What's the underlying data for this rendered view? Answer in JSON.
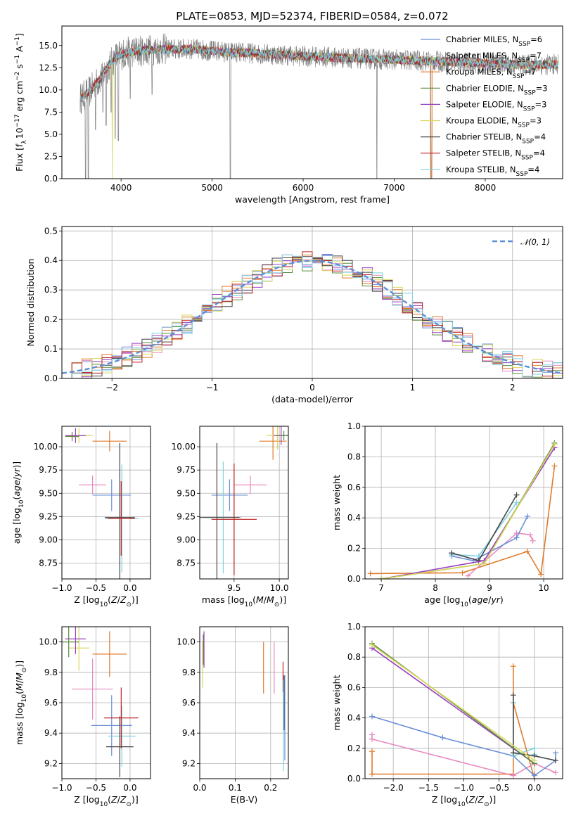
{
  "figure_title": "PLATE=0853, MJD=52374, FIBERID=0584, z=0.072",
  "series_styles": [
    {
      "name": "Chabrier MILES, N",
      "sub": "SSP",
      "suffix": "=6",
      "color": "#6a8fd8"
    },
    {
      "name": "Salpeter MILES, N",
      "sub": "SSP",
      "suffix": "=7",
      "color": "#e0e0e0"
    },
    {
      "name": "Kroupa MILES, N",
      "sub": "SSP",
      "suffix": "=7",
      "color": "#e07a2a"
    },
    {
      "name": "Chabrier ELODIE, N",
      "sub": "SSP",
      "suffix": "=3",
      "color": "#5b8a3c"
    },
    {
      "name": "Salpeter ELODIE, N",
      "sub": "SSP",
      "suffix": "=3",
      "color": "#9b3fc0"
    },
    {
      "name": "Kroupa ELODIE, N",
      "sub": "SSP",
      "suffix": "=3",
      "color": "#d8d85a"
    },
    {
      "name": "Chabrier STELIB, N",
      "sub": "SSP",
      "suffix": "=4",
      "color": "#444444"
    },
    {
      "name": "Salpeter STELIB, N",
      "sub": "SSP",
      "suffix": "=4",
      "color": "#c02020"
    },
    {
      "name": "Kroupa STELIB, N",
      "sub": "SSP",
      "suffix": "=4",
      "color": "#7fd3e0"
    }
  ],
  "chart_data": [
    {
      "id": "spectrum",
      "type": "line",
      "xlabel": "wavelength [Angstrom, rest frame]",
      "ylabel": "Flux [f",
      "xlim": [
        3350,
        8850
      ],
      "ylim": [
        0,
        17.2
      ],
      "xticks": [
        4000,
        5000,
        6000,
        7000,
        8000
      ],
      "yticks": [
        0.0,
        2.5,
        5.0,
        7.5,
        10.0,
        12.5,
        15.0
      ],
      "ytick_labels": [
        "0.0",
        "2.5",
        "5.0",
        "7.5",
        "10.0",
        "12.5",
        "15.0"
      ],
      "legend": "top-right",
      "data_color": "#808080",
      "approx_continuum": {
        "x": [
          3550,
          3650,
          3750,
          3850,
          3950,
          4100,
          4300,
          4500,
          4800,
          5100,
          5500,
          6000,
          6500,
          7000,
          7500,
          8000,
          8500,
          8800
        ],
        "y": [
          9.0,
          9.8,
          11.0,
          12.5,
          13.8,
          14.3,
          14.5,
          14.6,
          14.6,
          14.3,
          14.1,
          13.8,
          13.6,
          13.4,
          13.2,
          13.0,
          12.8,
          12.9
        ]
      }
    },
    {
      "id": "residuals",
      "type": "histogram",
      "xlabel": "(data-model)/error",
      "ylabel": "Normed distribution",
      "xlim": [
        -2.5,
        2.5
      ],
      "ylim": [
        0,
        0.515
      ],
      "xticks": [
        -2,
        -1,
        0,
        1,
        2
      ],
      "xtick_labels": [
        "−2",
        "−1",
        "0",
        "1",
        "2"
      ],
      "yticks": [
        0.0,
        0.1,
        0.2,
        0.3,
        0.4,
        0.5
      ],
      "ytick_labels": [
        "0.0",
        "0.1",
        "0.2",
        "0.3",
        "0.4",
        "0.5"
      ],
      "bin_width": 0.1,
      "grid": true,
      "legend": "top-right",
      "legend_label": "𝒩(0, 1)",
      "gaussian": {
        "mean": 0,
        "sigma": 1,
        "color": "#5b8fd8"
      }
    },
    {
      "id": "age-vs-Z",
      "type": "scatter",
      "xlabel": "Z [log",
      "ylabel": "age  [log",
      "xlim": [
        -1.0,
        0.3
      ],
      "ylim": [
        8.58,
        10.22
      ],
      "xticks": [
        -1.0,
        -0.5,
        0.0
      ],
      "xtick_labels": [
        "−1.0",
        "−0.5",
        "0.0"
      ],
      "yticks": [
        8.75,
        9.0,
        9.25,
        9.5,
        9.75,
        10.0
      ],
      "ytick_labels": [
        "8.75",
        "9.00",
        "9.25",
        "9.50",
        "9.75",
        "10.00"
      ],
      "grid": true,
      "points": [
        {
          "x": -0.55,
          "y": 9.59,
          "ex": 0.2,
          "ey": 0.1,
          "c": "#e889c0"
        },
        {
          "x": -0.27,
          "y": 9.48,
          "ex": 0.28,
          "ey": 0.17,
          "c": "#6a8fd8"
        },
        {
          "x": -0.12,
          "y": 9.23,
          "ex": 0.25,
          "ey": 0.58,
          "c": "#7fd3e0"
        },
        {
          "x": -0.15,
          "y": 9.24,
          "ex": 0.22,
          "ey": 0.8,
          "c": "#444444"
        },
        {
          "x": -0.13,
          "y": 9.23,
          "ex": 0.2,
          "ey": 0.4,
          "c": "#c02020"
        },
        {
          "x": -0.3,
          "y": 10.06,
          "ex": 0.25,
          "ey": 0.11,
          "c": "#e07a2a"
        },
        {
          "x": -0.75,
          "y": 10.12,
          "ex": 0.2,
          "ey": 0.08,
          "c": "#d8d85a"
        },
        {
          "x": -0.8,
          "y": 10.12,
          "ex": 0.15,
          "ey": 0.08,
          "c": "#9b3fc0"
        },
        {
          "x": -0.85,
          "y": 10.11,
          "ex": 0.1,
          "ey": 0.05,
          "c": "#5b8a3c"
        }
      ]
    },
    {
      "id": "age-vs-mass",
      "type": "scatter",
      "xlabel": "mass [log",
      "ylabel": "",
      "xlim": [
        9.12,
        10.1
      ],
      "ylim": [
        8.58,
        10.22
      ],
      "xticks": [
        9.5,
        10.0
      ],
      "xtick_labels": [
        "9.5",
        "10.0"
      ],
      "yticks": [
        8.75,
        9.0,
        9.25,
        9.5,
        9.75,
        10.0
      ],
      "ytick_labels": [
        "8.75",
        "9.00",
        "9.25",
        "9.50",
        "9.75",
        "10.00"
      ],
      "grid": true,
      "points": [
        {
          "x": 9.68,
          "y": 9.59,
          "ex": 0.18,
          "ey": 0.1,
          "c": "#e889c0"
        },
        {
          "x": 9.45,
          "y": 9.48,
          "ex": 0.2,
          "ey": 0.17,
          "c": "#6a8fd8"
        },
        {
          "x": 9.38,
          "y": 9.24,
          "ex": 0.2,
          "ey": 0.6,
          "c": "#7fd3e0"
        },
        {
          "x": 9.31,
          "y": 9.24,
          "ex": 0.25,
          "ey": 0.8,
          "c": "#444444"
        },
        {
          "x": 9.5,
          "y": 9.22,
          "ex": 0.25,
          "ey": 0.6,
          "c": "#c02020"
        },
        {
          "x": 9.93,
          "y": 10.06,
          "ex": 0.15,
          "ey": 0.2,
          "c": "#e07a2a"
        },
        {
          "x": 9.98,
          "y": 10.12,
          "ex": 0.12,
          "ey": 0.15,
          "c": "#d8d85a"
        },
        {
          "x": 10.02,
          "y": 10.12,
          "ex": 0.08,
          "ey": 0.1,
          "c": "#9b3fc0"
        },
        {
          "x": 10.05,
          "y": 10.12,
          "ex": 0.05,
          "ey": 0.05,
          "c": "#5b8a3c"
        }
      ]
    },
    {
      "id": "massweight-vs-age",
      "type": "line",
      "xlabel": "age  [log",
      "ylabel": "mass weight",
      "xlim": [
        6.7,
        10.35
      ],
      "ylim": [
        0,
        1.0
      ],
      "xticks": [
        7,
        8,
        9,
        10
      ],
      "xtick_labels": [
        "7",
        "8",
        "9",
        "10"
      ],
      "yticks": [
        0.0,
        0.2,
        0.4,
        0.6,
        0.8,
        1.0
      ],
      "ytick_labels": [
        "0.0",
        "0.2",
        "0.4",
        "0.6",
        "0.8",
        "1.0"
      ],
      "grid": true,
      "series": [
        {
          "c": "#e07a2a",
          "x": [
            6.8,
            8.5,
            9.7,
            9.95,
            10.2
          ],
          "y": [
            0.035,
            0.04,
            0.18,
            0.03,
            0.74
          ]
        },
        {
          "c": "#e889c0",
          "x": [
            8.6,
            9.5,
            9.75,
            9.8
          ],
          "y": [
            0.02,
            0.3,
            0.29,
            0.25
          ]
        },
        {
          "c": "#6a8fd8",
          "x": [
            8.3,
            8.7,
            9.5,
            9.7
          ],
          "y": [
            0.15,
            0.12,
            0.27,
            0.41
          ]
        },
        {
          "c": "#7fd3e0",
          "x": [
            8.3,
            8.8,
            9.5
          ],
          "y": [
            0.16,
            0.15,
            0.5
          ]
        },
        {
          "c": "#444444",
          "x": [
            8.3,
            8.8,
            9.5
          ],
          "y": [
            0.17,
            0.12,
            0.55
          ]
        },
        {
          "c": "#9b3fc0",
          "x": [
            7.0,
            8.9,
            10.2
          ],
          "y": [
            0.0,
            0.12,
            0.86
          ]
        },
        {
          "c": "#5b8a3c",
          "x": [
            7.0,
            8.9,
            10.2
          ],
          "y": [
            0.0,
            0.1,
            0.89
          ]
        },
        {
          "c": "#d8d85a",
          "x": [
            7.0,
            8.9,
            10.2
          ],
          "y": [
            0.0,
            0.1,
            0.88
          ]
        }
      ]
    },
    {
      "id": "mass-vs-Z",
      "type": "scatter",
      "xlabel": "Z [log",
      "ylabel": "mass [log",
      "xlim": [
        -1.0,
        0.3
      ],
      "ylim": [
        9.1,
        10.1
      ],
      "xticks": [
        -1.0,
        -0.5,
        0.0
      ],
      "xtick_labels": [
        "−1.0",
        "−0.5",
        "0.0"
      ],
      "yticks": [
        9.2,
        9.4,
        9.6,
        9.8,
        10.0
      ],
      "ytick_labels": [
        "9.2",
        "9.4",
        "9.6",
        "9.8",
        "10.0"
      ],
      "grid": true,
      "points": [
        {
          "x": -0.55,
          "y": 9.69,
          "ex": 0.3,
          "ey": 0.2,
          "c": "#e889c0"
        },
        {
          "x": -0.27,
          "y": 9.45,
          "ex": 0.3,
          "ey": 0.2,
          "c": "#6a8fd8"
        },
        {
          "x": -0.12,
          "y": 9.38,
          "ex": 0.2,
          "ey": 0.2,
          "c": "#7fd3e0"
        },
        {
          "x": -0.15,
          "y": 9.31,
          "ex": 0.2,
          "ey": 0.2,
          "c": "#444444"
        },
        {
          "x": -0.13,
          "y": 9.5,
          "ex": 0.25,
          "ey": 0.2,
          "c": "#c02020"
        },
        {
          "x": -0.3,
          "y": 9.92,
          "ex": 0.25,
          "ey": 0.15,
          "c": "#e07a2a"
        },
        {
          "x": -0.75,
          "y": 9.96,
          "ex": 0.15,
          "ey": 0.15,
          "c": "#d8d85a"
        },
        {
          "x": -0.8,
          "y": 10.02,
          "ex": 0.15,
          "ey": 0.1,
          "c": "#9b3fc0"
        },
        {
          "x": -0.9,
          "y": 10.0,
          "ex": 0.15,
          "ey": 0.1,
          "c": "#5b8a3c"
        }
      ]
    },
    {
      "id": "mass-vs-EBV",
      "type": "scatter",
      "xlabel": "E(B-V)",
      "ylabel": "",
      "xlim": [
        0.0,
        0.25
      ],
      "ylim": [
        9.1,
        10.1
      ],
      "xticks": [
        0.0,
        0.1,
        0.2
      ],
      "xtick_labels": [
        "0.0",
        "0.1",
        "0.2"
      ],
      "yticks": [
        9.2,
        9.4,
        9.6,
        9.8,
        10.0
      ],
      "ytick_labels": [
        "9.2",
        "9.4",
        "9.6",
        "9.8",
        "10.0"
      ],
      "grid": true,
      "points": [
        {
          "x": 0.18,
          "y": 9.83,
          "ex": 0.0,
          "ey": 0.17,
          "c": "#e07a2a"
        },
        {
          "x": 0.21,
          "y": 9.83,
          "ex": 0.0,
          "ey": 0.17,
          "c": "#e889c0"
        },
        {
          "x": 0.235,
          "y": 9.77,
          "ex": 0.0,
          "ey": 0.1,
          "c": "#c02020"
        },
        {
          "x": 0.238,
          "y": 9.6,
          "ex": 0.0,
          "ey": 0.18,
          "c": "#444444"
        },
        {
          "x": 0.24,
          "y": 9.5,
          "ex": 0.0,
          "ey": 0.28,
          "c": "#6a8fd8"
        },
        {
          "x": 0.236,
          "y": 9.45,
          "ex": 0.0,
          "ey": 0.3,
          "c": "#7fd3e0"
        },
        {
          "x": 0.01,
          "y": 9.95,
          "ex": 0.0,
          "ey": 0.1,
          "c": "#5b8a3c"
        },
        {
          "x": 0.012,
          "y": 9.95,
          "ex": 0.0,
          "ey": 0.12,
          "c": "#9b3fc0"
        },
        {
          "x": 0.008,
          "y": 9.85,
          "ex": 0.0,
          "ey": 0.15,
          "c": "#d8d85a"
        }
      ]
    },
    {
      "id": "massweight-vs-Z",
      "type": "line",
      "xlabel": "Z [log",
      "ylabel": "mass weight",
      "xlim": [
        -2.4,
        0.4
      ],
      "ylim": [
        0,
        1.0
      ],
      "xticks": [
        -2.0,
        -1.5,
        -1.0,
        -0.5,
        0.0
      ],
      "xtick_labels": [
        "−2.0",
        "−1.5",
        "−1.0",
        "−0.5",
        "0.0"
      ],
      "yticks": [
        0.0,
        0.2,
        0.4,
        0.6,
        0.8,
        1.0
      ],
      "ytick_labels": [
        "0.0",
        "0.2",
        "0.4",
        "0.6",
        "0.8",
        "1.0"
      ],
      "grid": true,
      "series": [
        {
          "c": "#e07a2a",
          "x": [
            -2.3,
            -2.3,
            -0.3,
            -0.3,
            -0.3,
            0.0,
            0.0
          ],
          "y": [
            0.18,
            0.03,
            0.03,
            0.74,
            0.5,
            0.0,
            0.03
          ]
        },
        {
          "c": "#e889c0",
          "x": [
            -2.3,
            -2.3,
            -0.3,
            0.0,
            0.3
          ],
          "y": [
            0.29,
            0.26,
            0.02,
            0.1,
            0.04
          ]
        },
        {
          "c": "#6a8fd8",
          "x": [
            -2.3,
            -1.3,
            -0.3,
            0.0,
            0.3,
            0.3
          ],
          "y": [
            0.41,
            0.27,
            0.15,
            0.02,
            0.12,
            0.17
          ]
        },
        {
          "c": "#7fd3e0",
          "x": [
            -0.3,
            -0.3,
            0.0,
            0.0
          ],
          "y": [
            0.5,
            0.15,
            0.2,
            0.16
          ]
        },
        {
          "c": "#444444",
          "x": [
            -0.3,
            -0.3,
            0.0,
            0.3
          ],
          "y": [
            0.55,
            0.17,
            0.15,
            0.12
          ]
        },
        {
          "c": "#9b3fc0",
          "x": [
            -2.3,
            0.0
          ],
          "y": [
            0.86,
            0.1
          ]
        },
        {
          "c": "#5b8a3c",
          "x": [
            -2.3,
            0.0
          ],
          "y": [
            0.89,
            0.1
          ]
        },
        {
          "c": "#d8d85a",
          "x": [
            -2.3,
            0.0
          ],
          "y": [
            0.88,
            0.12
          ]
        }
      ]
    }
  ]
}
